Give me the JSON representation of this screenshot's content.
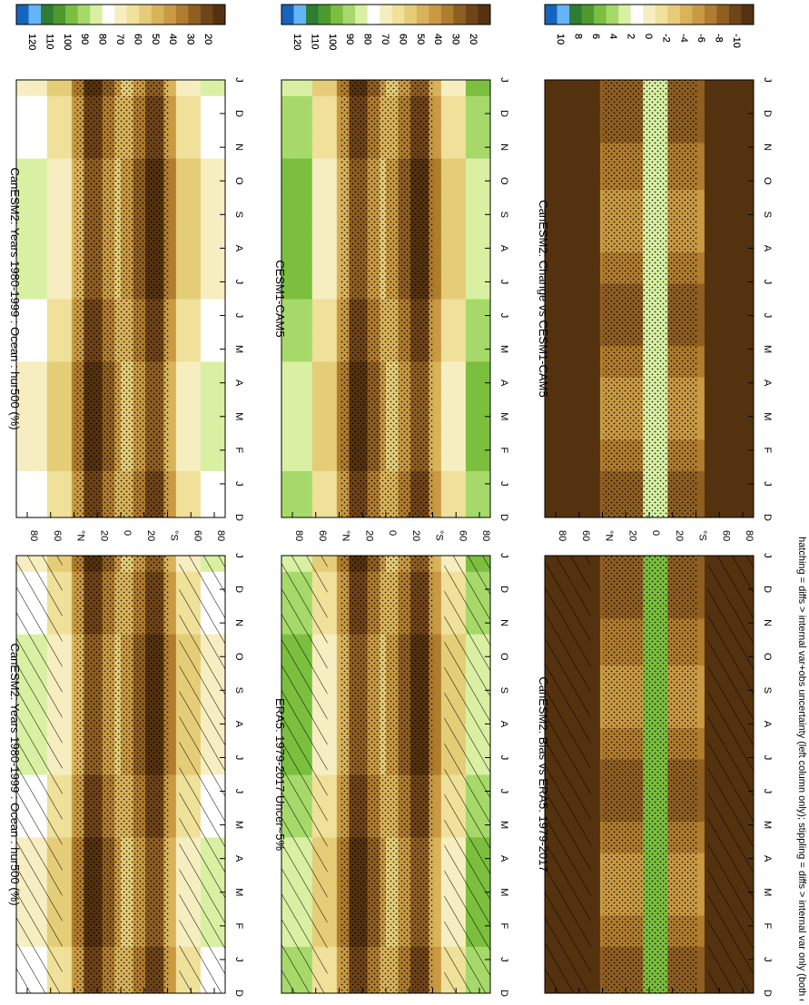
{
  "footer_note": "hatching = diffs > internal var+obs uncertainty (left column only); stippling = diffs > internal var only (both columns)",
  "colors": {
    "mean_scale": [
      "#1565c0",
      "#64b5f6",
      "#2e7d32",
      "#4e9a2f",
      "#7cbf3e",
      "#a6d96a",
      "#d9f0a3",
      "#ffffff",
      "#f6eec0",
      "#efe09a",
      "#e5cd78",
      "#d9b35a",
      "#c99a43",
      "#b07c2e",
      "#8f5f22",
      "#6f4418",
      "#55320f"
    ],
    "diff_scale": [
      "#1565c0",
      "#64b5f6",
      "#2e7d32",
      "#4e9a2f",
      "#7cbf3e",
      "#a6d96a",
      "#d9f0a3",
      "#ffffff",
      "#f6eec0",
      "#efe09a",
      "#e5cd78",
      "#d9b35a",
      "#c99a43",
      "#b07c2e",
      "#8f5f22",
      "#6f4418",
      "#55320f"
    ]
  },
  "chart_data": [
    {
      "type": "heatmap",
      "title": "CanESM2: Years 1980-1999 : Ocean : hur500 (%)",
      "x_ticks": [
        "D",
        "J",
        "F",
        "M",
        "A",
        "M",
        "J",
        "J",
        "A",
        "S",
        "O",
        "N",
        "D",
        "J"
      ],
      "y_ticks": [
        "80",
        "60",
        "°N",
        "20",
        "0",
        "20",
        "°S",
        "60",
        "80"
      ],
      "colorbar": [
        "120",
        "110",
        "100",
        "90",
        "80",
        "70",
        "60",
        "50",
        "40",
        "30",
        "20"
      ],
      "overlay": "hatching + stippling"
    },
    {
      "type": "heatmap",
      "title": "CanESM2: Years 1980-1999 : Ocean : hur500 (%)",
      "x_ticks": [
        "D",
        "J",
        "F",
        "M",
        "A",
        "M",
        "J",
        "J",
        "A",
        "S",
        "O",
        "N",
        "D",
        "J"
      ],
      "y_ticks": [
        "80",
        "60",
        "°N",
        "20",
        "0",
        "20",
        "°S",
        "60",
        "80"
      ],
      "colorbar": [
        "120",
        "110",
        "100",
        "90",
        "80",
        "70",
        "60",
        "50",
        "40",
        "30",
        "20"
      ],
      "overlay": "stippling"
    },
    {
      "type": "heatmap",
      "title": "ERA5: 1979-2017 Uncer~5%",
      "x_ticks": [
        "D",
        "J",
        "F",
        "M",
        "A",
        "M",
        "J",
        "J",
        "A",
        "S",
        "O",
        "N",
        "D",
        "J"
      ],
      "y_ticks": [
        "80",
        "60",
        "°N",
        "20",
        "0",
        "20",
        "°S",
        "60",
        "80"
      ],
      "colorbar": [
        "120",
        "110",
        "100",
        "90",
        "80",
        "70",
        "60",
        "50",
        "40",
        "30",
        "20"
      ],
      "overlay": "hatching + stippling"
    },
    {
      "type": "heatmap",
      "title": "CESM1-CAM5",
      "x_ticks": [
        "D",
        "J",
        "F",
        "M",
        "A",
        "M",
        "J",
        "J",
        "A",
        "S",
        "O",
        "N",
        "D",
        "J"
      ],
      "y_ticks": [
        "80",
        "60",
        "°N",
        "20",
        "0",
        "20",
        "°S",
        "60",
        "80"
      ],
      "colorbar": [
        "120",
        "110",
        "100",
        "90",
        "80",
        "70",
        "60",
        "50",
        "40",
        "30",
        "20"
      ],
      "overlay": "stippling"
    },
    {
      "type": "heatmap",
      "title": "CanESM2: Bias vs ERA5: 1979-2017",
      "x_ticks": [
        "D",
        "J",
        "F",
        "M",
        "A",
        "M",
        "J",
        "J",
        "A",
        "S",
        "O",
        "N",
        "D",
        "J"
      ],
      "y_ticks": [
        "80",
        "60",
        "°N",
        "20",
        "0",
        "20",
        "°S",
        "60",
        "80"
      ],
      "colorbar": [
        "10",
        "8",
        "6",
        "4",
        "2",
        "0",
        "-2",
        "-4",
        "-6",
        "-8",
        "-10"
      ],
      "overlay": "hatching + stippling"
    },
    {
      "type": "heatmap",
      "title": "CanESM2: Change vs CESM1-CAM5",
      "x_ticks": [
        "D",
        "J",
        "F",
        "M",
        "A",
        "M",
        "J",
        "J",
        "A",
        "S",
        "O",
        "N",
        "D",
        "J"
      ],
      "y_ticks": [
        "80",
        "60",
        "°N",
        "20",
        "0",
        "20",
        "°S",
        "60",
        "80"
      ],
      "colorbar": [
        "10",
        "8",
        "6",
        "4",
        "2",
        "0",
        "-2",
        "-4",
        "-6",
        "-8",
        "-10"
      ],
      "overlay": "stippling"
    }
  ]
}
